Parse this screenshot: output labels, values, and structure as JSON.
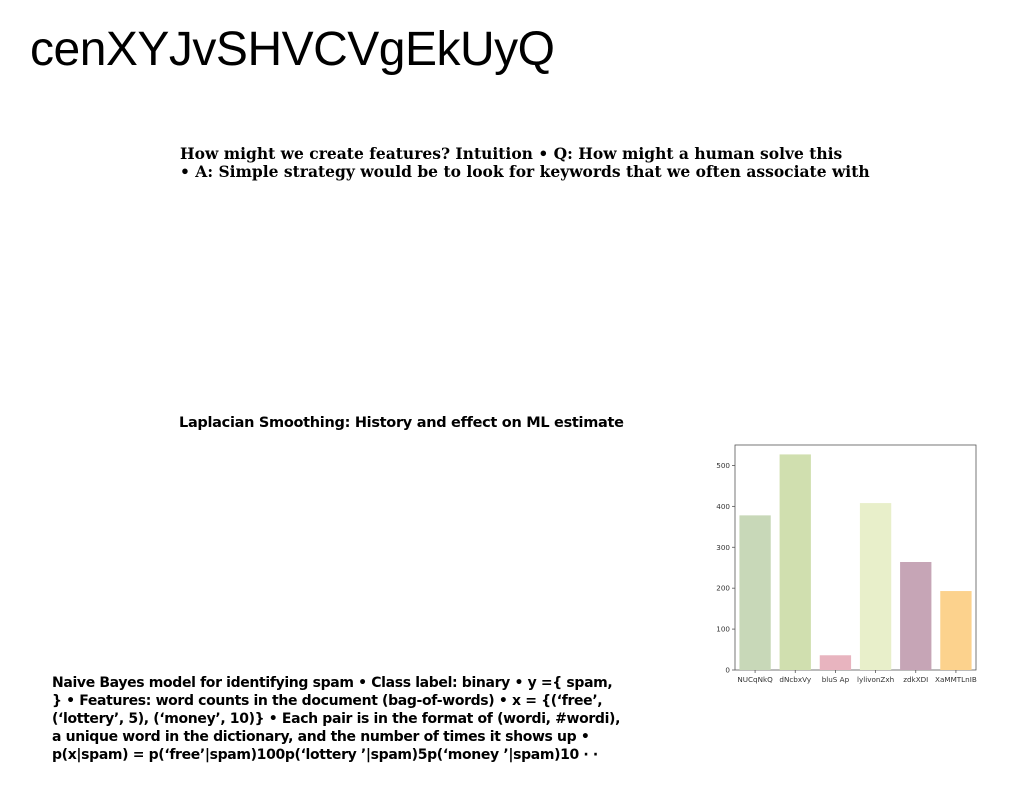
{
  "page": {
    "title": "cenXYJvSHVCVgEkUyQ"
  },
  "intro": {
    "lines": [
      "How might we create features? Intuition • Q: How might a human solve this",
      "• A: Simple strategy would be to look for keywords that we often associate with"
    ]
  },
  "section": {
    "heading": "Laplacian Smoothing: History and effect on ML estimate"
  },
  "naive_bayes": {
    "lines": [
      "Naive Bayes model for identifying spam • Class label: binary • y ={ spam,",
      "} • Features: word counts in the document (bag-of-words) • x = {(‘free’,",
      "(‘lottery’, 5), (‘money’, 10)} • Each pair is in the format of (wordi, #wordi),",
      "a unique word in the dictionary, and the number of times it shows up •",
      "p(x|spam) = p(‘free’|spam)100p(‘lottery ’|spam)5p(‘money ’|spam)10 · ·"
    ]
  },
  "chart_data": {
    "type": "bar",
    "categories": [
      "NUCqNkQ",
      "dNcbxVy",
      "bluS Ap",
      "lylivonZxh",
      "zdkXDI",
      "XaMMTLnIB"
    ],
    "values": [
      378,
      527,
      36,
      408,
      264,
      193
    ],
    "colors": [
      "#c8d8b8",
      "#d0dfaf",
      "#e8b4bf",
      "#e8efca",
      "#c6a5b6",
      "#fcd28d"
    ],
    "ylim": [
      0,
      550
    ],
    "yticks": [
      0,
      100,
      200,
      300,
      400,
      500
    ],
    "grid": false,
    "title": "",
    "xlabel": "",
    "ylabel": ""
  }
}
